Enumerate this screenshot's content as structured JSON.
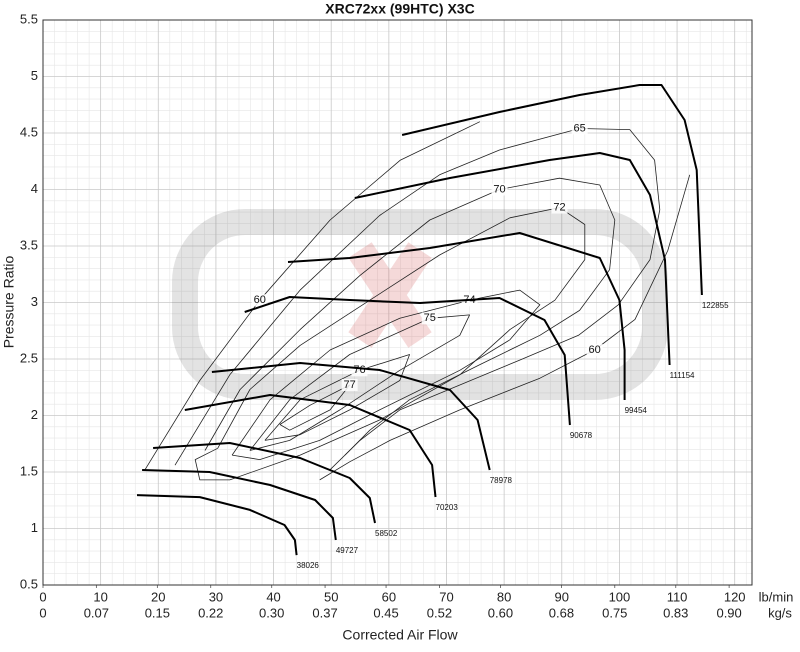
{
  "chart_data": {
    "type": "line",
    "title": "XRC72xx (99HTC) X3C",
    "xlabel": "Corrected Air Flow",
    "ylabel": "Pressure Ratio",
    "x_unit": "lb/min",
    "x2_unit": "kg/s",
    "xlim": [
      0,
      123
    ],
    "xticks": [
      0,
      10,
      20,
      30,
      40,
      50,
      60,
      70,
      80,
      90,
      100,
      110,
      120
    ],
    "x2lim": [
      0,
      0.93
    ],
    "x2ticks": [
      0,
      0.07,
      0.15,
      0.22,
      {
        "value": 0.3,
        "label": "0.30"
      },
      0.37,
      0.45,
      0.52,
      {
        "value": 0.6,
        "label": "0.60"
      },
      0.68,
      0.75,
      0.83,
      {
        "value": 0.9,
        "label": "0.90"
      }
    ],
    "ylim": [
      0.5,
      5.5
    ],
    "yticks": [
      0.5,
      1,
      1.5,
      2,
      2.5,
      3,
      3.5,
      4,
      4.5,
      5,
      5.5
    ],
    "grid": true,
    "speed_color": "#000000",
    "efficiency_color": "#222222",
    "speed_lines": [
      {
        "speed": 38026,
        "x": [
          16.3,
          27.2,
          35.9,
          41.9,
          43.7,
          44.0
        ],
        "y": [
          1.296,
          1.278,
          1.165,
          1.031,
          0.898,
          0.765
        ]
      },
      {
        "speed": 49727,
        "x": [
          17.2,
          28.9,
          39.4,
          47.2,
          50.3,
          50.8
        ],
        "y": [
          1.518,
          1.5,
          1.385,
          1.252,
          1.093,
          0.898
        ]
      },
      {
        "speed": 58502,
        "x": [
          19.1,
          32.4,
          44.6,
          53.2,
          56.7,
          57.6
        ],
        "y": [
          1.712,
          1.757,
          1.624,
          1.447,
          1.27,
          1.049
        ]
      },
      {
        "speed": 70203,
        "x": [
          24.6,
          39.4,
          53.2,
          63.6,
          67.5,
          68.1
        ],
        "y": [
          2.049,
          2.181,
          2.093,
          1.872,
          1.562,
          1.279
        ]
      },
      {
        "speed": 78978,
        "x": [
          29.3,
          44.6,
          58.4,
          70.6,
          75.4,
          77.5
        ],
        "y": [
          2.385,
          2.465,
          2.403,
          2.226,
          1.96,
          1.518
        ]
      },
      {
        "speed": 90678,
        "x": [
          35.0,
          42.8,
          53.2,
          65.4,
          79.2,
          87.0,
          90.5,
          91.4
        ],
        "y": [
          2.916,
          3.049,
          3.022,
          2.996,
          3.04,
          2.845,
          2.535,
          1.916
        ]
      },
      {
        "speed": 99454,
        "x": [
          42.5,
          53.2,
          67.1,
          82.7,
          96.6,
          100.0,
          100.9,
          100.9
        ],
        "y": [
          3.358,
          3.394,
          3.482,
          3.615,
          3.394,
          3.022,
          2.58,
          2.137
        ]
      },
      {
        "speed": 111154,
        "x": [
          54.1,
          70.6,
          87.9,
          96.6,
          101.8,
          105.3,
          107.9,
          108.7
        ],
        "y": [
          3.925,
          4.102,
          4.261,
          4.323,
          4.261,
          3.951,
          3.376,
          2.447
        ]
      },
      {
        "speed": 122855,
        "x": [
          62.3,
          79.2,
          93.1,
          103.5,
          107.3,
          111.3,
          113.4,
          114.3
        ],
        "y": [
          4.482,
          4.686,
          4.836,
          4.925,
          4.925,
          4.615,
          4.173,
          3.066
        ]
      }
    ],
    "efficiency_contours": [
      {
        "efficiency": 60,
        "x": [
          17.7,
          27.2,
          37.6,
          49.8,
          62.0,
          75.8,
          null,
          112.2,
          108.4,
          102.7,
          95.7,
          86.2,
          72.3,
          60.2,
          53.2,
          48.0
        ],
        "y": [
          1.52,
          2.31,
          3.02,
          3.73,
          4.26,
          4.6,
          null,
          4.13,
          3.46,
          2.85,
          2.58,
          2.33,
          2.05,
          1.78,
          1.59,
          1.43
        ]
      },
      {
        "efficiency": 65,
        "x": [
          22.9,
          32.4,
          44.6,
          58.4,
          68.8,
          79.2,
          93.1,
          101.8,
          106.1,
          107.0,
          105.3,
          99.8,
          92.9,
          82.7,
          72.3,
          61.9,
          55.0,
          49.8
        ],
        "y": [
          1.56,
          2.36,
          3.11,
          3.77,
          4.13,
          4.35,
          4.54,
          4.53,
          4.26,
          3.82,
          3.38,
          2.98,
          2.71,
          2.49,
          2.27,
          2.05,
          1.78,
          1.52
        ]
      },
      {
        "efficiency": 70,
        "x": [
          28.1,
          34.2,
          44.6,
          55.0,
          67.1,
          79.2,
          89.6,
          96.6,
          99.2,
          98.3,
          93.1,
          86.2,
          75.8,
          63.6,
          56.7,
          52.4
        ],
        "y": [
          1.69,
          2.23,
          2.76,
          3.24,
          3.73,
          4.0,
          4.1,
          4.04,
          3.73,
          3.29,
          2.93,
          2.71,
          2.45,
          2.14,
          1.87,
          1.65
        ]
      },
      {
        "efficiency": 72,
        "x": [
          30.3,
          35.9,
          44.6,
          56.7,
          68.8,
          81.0,
          89.6,
          94.0,
          94.0,
          88.8,
          81.0,
          72.3,
          58.4,
          44.6,
          32.4,
          27.2,
          26.4,
          30.3
        ],
        "y": [
          1.71,
          2.23,
          2.62,
          3.02,
          3.42,
          3.75,
          3.84,
          3.69,
          3.38,
          3.02,
          2.76,
          2.36,
          1.96,
          1.65,
          1.43,
          1.43,
          1.61,
          1.71
        ]
      },
      {
        "efficiency": 74,
        "x": [
          32.8,
          39.4,
          49.8,
          61.9,
          74.0,
          82.7,
          86.2,
          81.0,
          72.3,
          58.4,
          48.0,
          37.6,
          32.8
        ],
        "y": [
          1.65,
          2.14,
          2.58,
          2.86,
          3.02,
          3.11,
          2.98,
          2.67,
          2.4,
          2.05,
          1.78,
          1.61,
          1.65
        ]
      },
      {
        "efficiency": 75,
        "x": [
          35.9,
          42.8,
          53.2,
          67.1,
          74.0,
          72.3,
          61.9,
          51.5,
          42.8,
          35.9
        ],
        "y": [
          1.69,
          2.14,
          2.54,
          2.86,
          2.89,
          2.71,
          2.4,
          2.05,
          1.78,
          1.69
        ]
      },
      {
        "efficiency": 76,
        "x": [
          38.5,
          44.6,
          54.9,
          63.6,
          61.9,
          53.2,
          44.6,
          38.5
        ],
        "y": [
          1.78,
          2.14,
          2.4,
          2.54,
          2.31,
          2.05,
          1.83,
          1.78
        ]
      },
      {
        "efficiency": 77,
        "x": [
          41.1,
          46.3,
          53.2,
          49.8,
          42.8,
          41.1
        ],
        "y": [
          1.92,
          2.09,
          2.27,
          2.05,
          1.87,
          1.92
        ]
      }
    ]
  }
}
